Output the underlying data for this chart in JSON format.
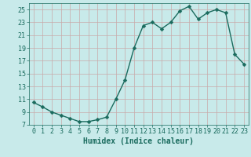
{
  "x": [
    0,
    1,
    2,
    3,
    4,
    5,
    6,
    7,
    8,
    9,
    10,
    11,
    12,
    13,
    14,
    15,
    16,
    17,
    18,
    19,
    20,
    21,
    22,
    23
  ],
  "y": [
    10.5,
    9.8,
    9.0,
    8.5,
    8.0,
    7.5,
    7.5,
    7.8,
    8.2,
    11.0,
    14.0,
    19.0,
    22.5,
    23.0,
    22.0,
    23.0,
    24.8,
    25.5,
    23.5,
    24.5,
    25.0,
    24.5,
    18.0,
    16.5
  ],
  "line_color": "#1a6b5e",
  "bg_color": "#c8eaea",
  "grid_color": "#a8cccc",
  "xlabel": "Humidex (Indice chaleur)",
  "xlim": [
    -0.5,
    23.5
  ],
  "ylim": [
    7,
    26
  ],
  "yticks": [
    7,
    9,
    11,
    13,
    15,
    17,
    19,
    21,
    23,
    25
  ],
  "xticks": [
    0,
    1,
    2,
    3,
    4,
    5,
    6,
    7,
    8,
    9,
    10,
    11,
    12,
    13,
    14,
    15,
    16,
    17,
    18,
    19,
    20,
    21,
    22,
    23
  ],
  "marker_size": 2.5,
  "line_width": 1.0,
  "xlabel_fontsize": 7,
  "tick_fontsize": 6
}
